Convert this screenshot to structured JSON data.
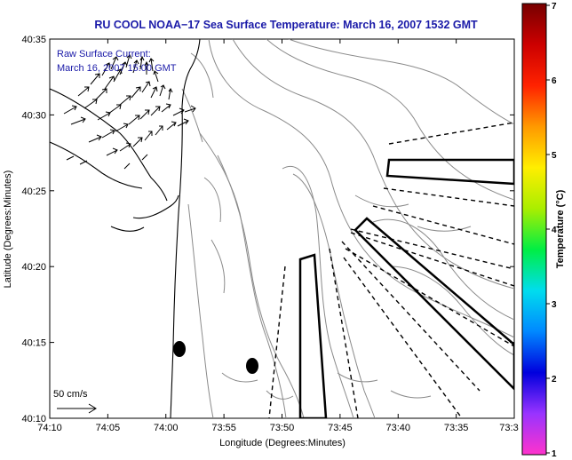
{
  "title": "RU COOL  NOAA−17  Sea Surface Temperature:  March 16, 2007 1532 GMT",
  "annotation": {
    "line1": "Raw Surface Current:",
    "line2": "March 16, 2007 15:00 GMT",
    "scale_label": "50 cm/s"
  },
  "axes": {
    "xlabel": "Longitude (Degrees:Minutes)",
    "ylabel": "Latitude (Degrees:Minutes)",
    "x_ticks": [
      "74:10",
      "74:05",
      "74:00",
      "73:55",
      "73:50",
      "73:45",
      "73:40",
      "73:35",
      "73:3"
    ],
    "y_ticks": [
      "40:35",
      "40:30",
      "40:25",
      "40:20",
      "40:15",
      "40:10"
    ]
  },
  "colorbar": {
    "label": "Temperature (°C)",
    "ticks": [
      "7",
      "6",
      "5",
      "4",
      "3",
      "2",
      "1"
    ],
    "min": 1,
    "max": 7,
    "colors": [
      "#ff33cc",
      "#9933ff",
      "#0000dd",
      "#0088ff",
      "#00ddee",
      "#00ee44",
      "#aaee00",
      "#ffee00",
      "#ff9900",
      "#ff2200",
      "#cc0000",
      "#770000"
    ]
  }
}
